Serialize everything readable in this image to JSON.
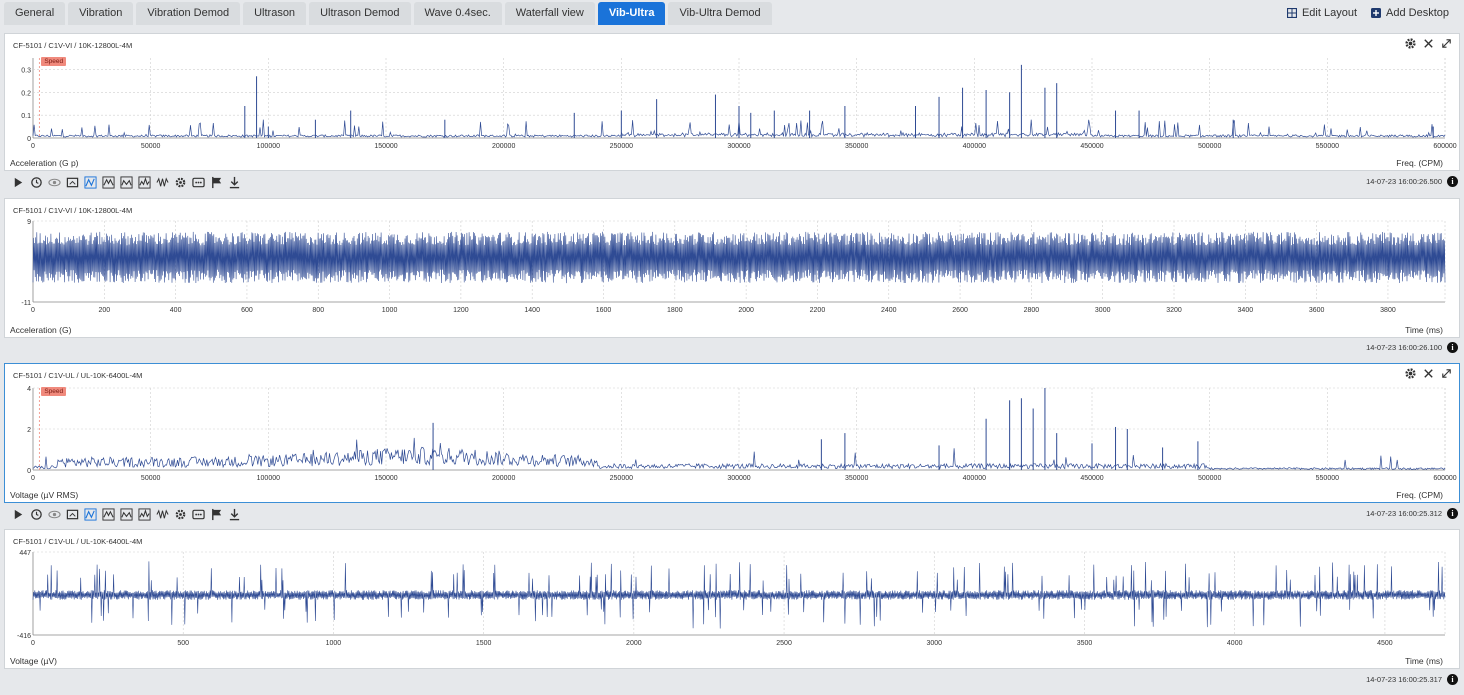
{
  "tabs": [
    {
      "label": "General",
      "active": false
    },
    {
      "label": "Vibration",
      "active": false
    },
    {
      "label": "Vibration Demod",
      "active": false
    },
    {
      "label": "Ultrason",
      "active": false
    },
    {
      "label": "Ultrason Demod",
      "active": false
    },
    {
      "label": "Wave 0.4sec.",
      "active": false
    },
    {
      "label": "Waterfall view",
      "active": false
    },
    {
      "label": "Vib-Ultra",
      "active": true
    },
    {
      "label": "Vib-Ultra Demod",
      "active": false
    }
  ],
  "actions": {
    "edit_layout": "Edit Layout",
    "add_desktop": "Add Desktop"
  },
  "colors": {
    "accent": "#1a73d9",
    "trace": "#2f4b94",
    "speed": "#f08a7d",
    "grid": "#c8c8c8"
  },
  "speed_label": "Speed",
  "panels": [
    {
      "title": "CF-5101 / C1V-VI / 10K-12800L-4M",
      "ylabel": "Acceleration (G p)",
      "xlabel": "Freq. (CPM)",
      "timestamp": "14-07-23 16:00:26.500",
      "has_tools": true,
      "has_speed": true,
      "chart_data": {
        "type": "line",
        "x_range": [
          0,
          600000
        ],
        "y_range": [
          0,
          0.35
        ],
        "x_ticks": [
          "0",
          "50000",
          "100000",
          "150000",
          "200000",
          "250000",
          "300000",
          "350000",
          "400000",
          "450000",
          "500000",
          "550000",
          "600000"
        ],
        "y_ticks": [
          "0",
          "0.1",
          "0.2",
          "0.3"
        ],
        "peaks": [
          [
            95000,
            0.27
          ],
          [
            90000,
            0.14
          ],
          [
            100000,
            0.05
          ],
          [
            120000,
            0.08
          ],
          [
            135000,
            0.12
          ],
          [
            175000,
            0.08
          ],
          [
            230000,
            0.11
          ],
          [
            250000,
            0.12
          ],
          [
            265000,
            0.17
          ],
          [
            290000,
            0.19
          ],
          [
            300000,
            0.14
          ],
          [
            305000,
            0.11
          ],
          [
            315000,
            0.12
          ],
          [
            330000,
            0.12
          ],
          [
            345000,
            0.14
          ],
          [
            375000,
            0.14
          ],
          [
            385000,
            0.18
          ],
          [
            395000,
            0.22
          ],
          [
            405000,
            0.21
          ],
          [
            415000,
            0.2
          ],
          [
            420000,
            0.32
          ],
          [
            430000,
            0.22
          ],
          [
            435000,
            0.24
          ],
          [
            460000,
            0.12
          ],
          [
            470000,
            0.12
          ],
          [
            510000,
            0.08
          ],
          [
            595000,
            0.05
          ]
        ]
      }
    },
    {
      "title": "CF-5101 / C1V-VI / 10K-12800L-4M",
      "ylabel": "Acceleration (G)",
      "xlabel": "Time (ms)",
      "timestamp": "14-07-23 16:00:26.100",
      "has_tools": false,
      "has_speed": false,
      "chart_data": {
        "type": "line",
        "x_range": [
          0,
          3960
        ],
        "y_range": [
          -11,
          9
        ],
        "x_ticks": [
          "0",
          "200",
          "400",
          "600",
          "800",
          "1000",
          "1200",
          "1400",
          "1600",
          "1800",
          "2000",
          "2200",
          "2400",
          "2600",
          "2800",
          "3000",
          "3200",
          "3400",
          "3600",
          "3800"
        ],
        "y_ticks": [
          "9",
          "-11"
        ]
      }
    },
    {
      "title": "CF-5101 / C1V-UL / UL-10K-6400L-4M",
      "ylabel": "Voltage (µV RMS)",
      "xlabel": "Freq. (CPM)",
      "timestamp": "14-07-23 16:00:25.312",
      "has_tools": true,
      "has_speed": true,
      "chart_data": {
        "type": "line",
        "x_range": [
          0,
          600000
        ],
        "y_range": [
          0,
          4
        ],
        "x_ticks": [
          "0",
          "50000",
          "100000",
          "150000",
          "200000",
          "250000",
          "300000",
          "350000",
          "400000",
          "450000",
          "500000",
          "550000",
          "600000"
        ],
        "y_ticks": [
          "0",
          "2",
          "4"
        ],
        "peaks": [
          [
            170000,
            2.3
          ],
          [
            335000,
            1.5
          ],
          [
            345000,
            1.8
          ],
          [
            385000,
            1.2
          ],
          [
            405000,
            2.5
          ],
          [
            415000,
            3.4
          ],
          [
            420000,
            3.5
          ],
          [
            425000,
            3.0
          ],
          [
            430000,
            4.0
          ],
          [
            435000,
            1.8
          ],
          [
            450000,
            1.3
          ],
          [
            460000,
            2.1
          ],
          [
            465000,
            2.0
          ],
          [
            480000,
            1.1
          ],
          [
            495000,
            1.4
          ]
        ]
      }
    },
    {
      "title": "CF-5101 / C1V-UL / UL-10K-6400L-4M",
      "ylabel": "Voltage (µV)",
      "xlabel": "Time (ms)",
      "timestamp": "14-07-23 16:00:25.317",
      "has_tools": false,
      "has_speed": false,
      "chart_data": {
        "type": "line",
        "x_range": [
          0,
          4700
        ],
        "y_range": [
          -416,
          447
        ],
        "x_ticks": [
          "0",
          "500",
          "1000",
          "1500",
          "2000",
          "2500",
          "3000",
          "3500",
          "4000",
          "4500"
        ],
        "y_ticks": [
          "447",
          "-416"
        ]
      }
    }
  ]
}
